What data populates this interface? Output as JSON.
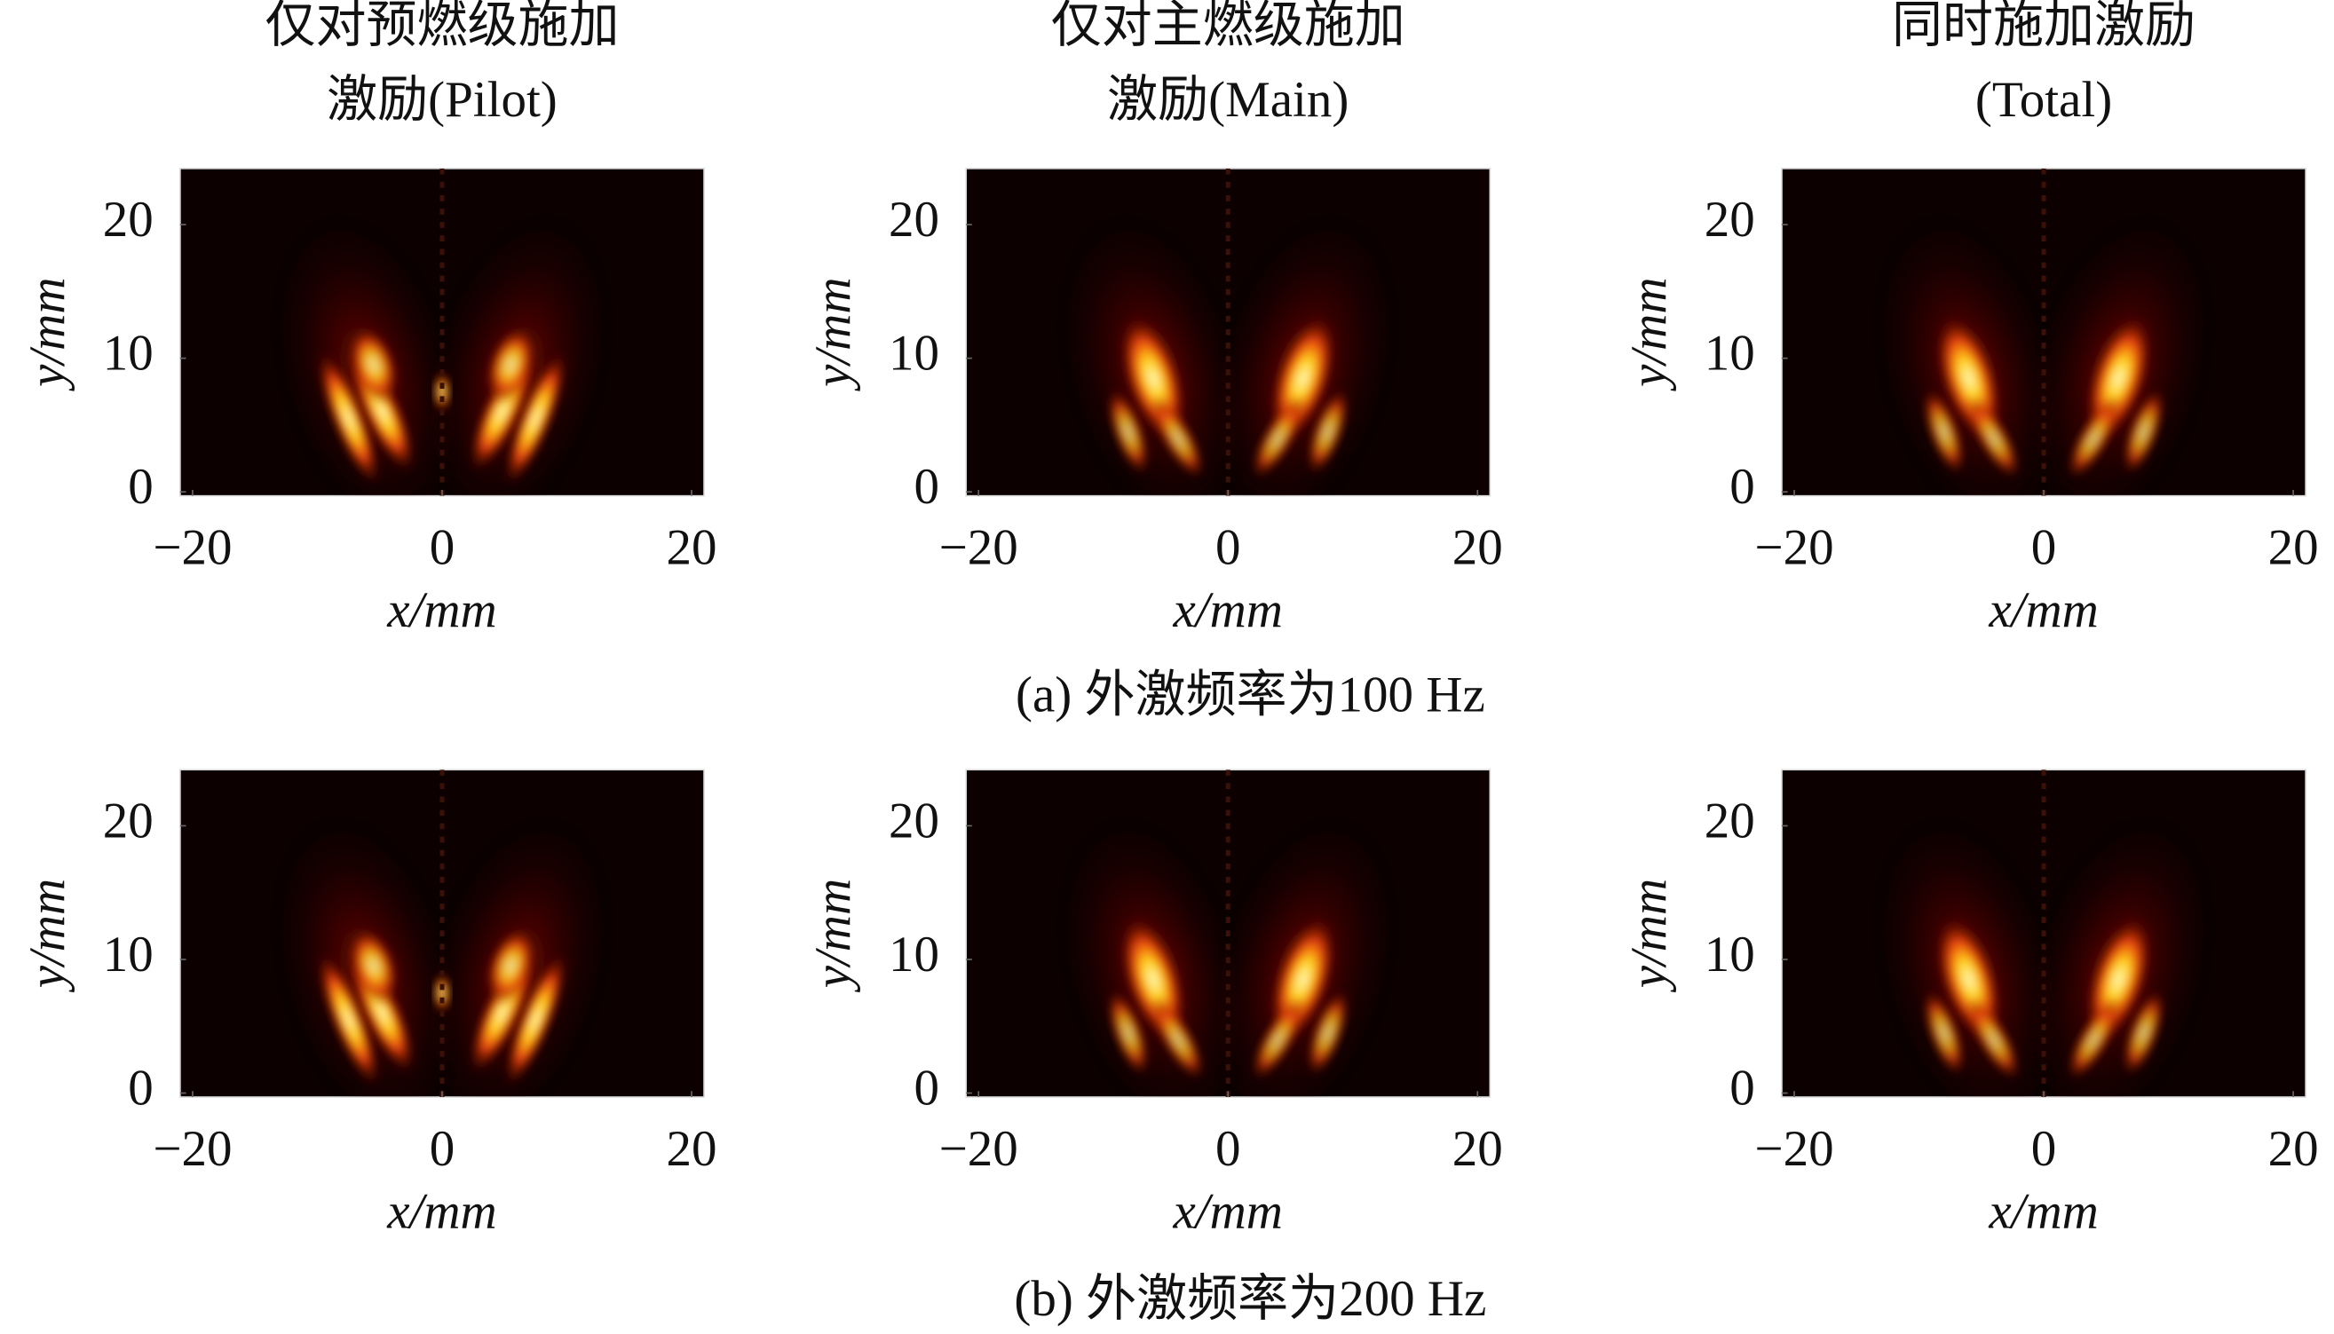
{
  "captions": [
    "(a) 外激频率为100 Hz",
    "(b) 外激频率为200 Hz"
  ],
  "chart_data": [
    {
      "type": "heatmap",
      "title": [
        "仅对预燃级施加",
        "激励(Pilot)"
      ],
      "xlabel": "x/mm",
      "ylabel": "y/mm",
      "xlim": [
        -21,
        21
      ],
      "ylim": [
        -0.3,
        24.2
      ],
      "xticks": [
        {
          "value": -20,
          "label": "−20"
        },
        0,
        20
      ],
      "yticks": [
        0,
        10,
        20
      ]
    },
    {
      "type": "heatmap",
      "title": [
        "仅对主燃级施加",
        "激励(Main)"
      ],
      "xlabel": "x/mm",
      "ylabel": "y/mm",
      "xlim": [
        -21,
        21
      ],
      "ylim": [
        -0.3,
        24.2
      ],
      "xticks": [
        {
          "value": -20,
          "label": "−20"
        },
        0,
        20
      ],
      "yticks": [
        0,
        10,
        20
      ]
    },
    {
      "type": "heatmap",
      "title": [
        "同时施加激励",
        "(Total)"
      ],
      "xlabel": "x/mm",
      "ylabel": "y/mm",
      "xlim": [
        -21,
        21
      ],
      "ylim": [
        -0.3,
        24.2
      ],
      "xticks": [
        {
          "value": -20,
          "label": "−20"
        },
        0,
        20
      ],
      "yticks": [
        0,
        10,
        20
      ]
    },
    {
      "type": "heatmap",
      "xlabel": "x/mm",
      "ylabel": "y/mm",
      "xlim": [
        -21,
        21
      ],
      "ylim": [
        -0.3,
        24.2
      ],
      "xticks": [
        {
          "value": -20,
          "label": "−20"
        },
        0,
        20
      ],
      "yticks": [
        0,
        10,
        20
      ]
    },
    {
      "type": "heatmap",
      "xlabel": "x/mm",
      "ylabel": "y/mm",
      "xlim": [
        -21,
        21
      ],
      "ylim": [
        -0.3,
        24.2
      ],
      "xticks": [
        {
          "value": -20,
          "label": "−20"
        },
        0,
        20
      ],
      "yticks": [
        0,
        10,
        20
      ]
    },
    {
      "type": "heatmap",
      "xlabel": "x/mm",
      "ylabel": "y/mm",
      "xlim": [
        -21,
        21
      ],
      "ylim": [
        -0.3,
        24.2
      ],
      "xticks": [
        {
          "value": -20,
          "label": "−20"
        },
        0,
        20
      ],
      "yticks": [
        0,
        10,
        20
      ]
    }
  ]
}
